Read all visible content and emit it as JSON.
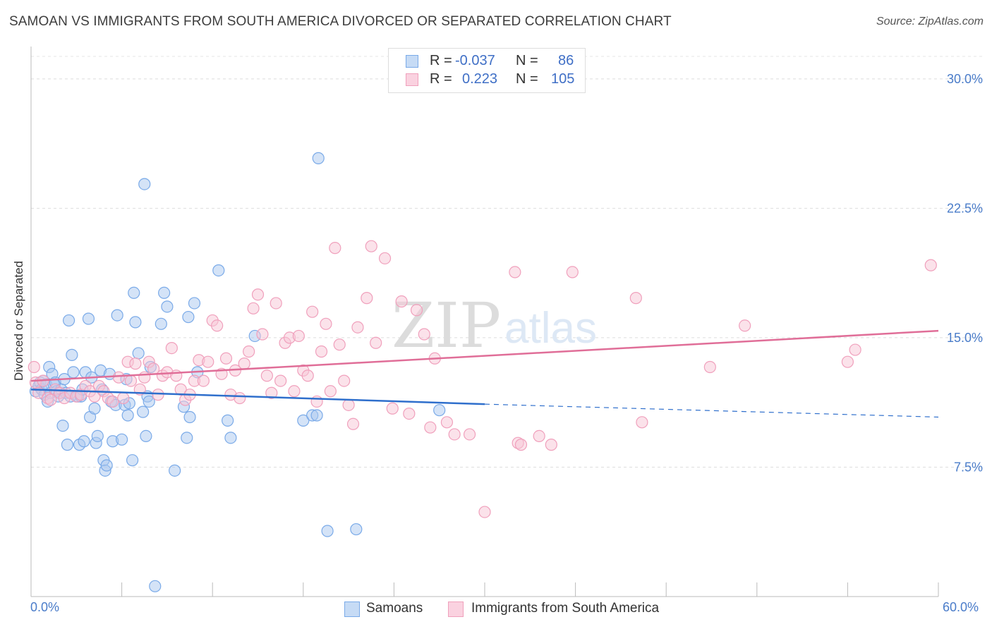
{
  "title": "SAMOAN VS IMMIGRANTS FROM SOUTH AMERICA DIVORCED OR SEPARATED CORRELATION CHART",
  "source": "Source: ZipAtlas.com",
  "watermark": {
    "zip": "ZIP",
    "atlas": "atlas"
  },
  "legend": {
    "r_label": "R =",
    "n_label": "N =",
    "rows": [
      {
        "r": "-0.037",
        "n": "86",
        "color": "#7aaae8"
      },
      {
        "r": "0.223",
        "n": "105",
        "color": "#f0a0bc"
      }
    ]
  },
  "chart_data": {
    "type": "scatter",
    "title": "SAMOAN VS IMMIGRANTS FROM SOUTH AMERICA DIVORCED OR SEPARATED CORRELATION CHART",
    "xlabel": "",
    "ylabel": "Divorced or Separated",
    "xlim": [
      0,
      60
    ],
    "ylim": [
      0,
      31.3
    ],
    "x_tick_labels": {
      "left": "0.0%",
      "right": "60.0%"
    },
    "y_ticks": [
      7.5,
      15.0,
      22.5,
      30.0
    ],
    "y_tick_labels": [
      "7.5%",
      "15.0%",
      "22.5%",
      "30.0%"
    ],
    "grid": true,
    "series": [
      {
        "name": "Samoans",
        "color": "#7aaae8",
        "fill": "#aac8f0",
        "line_color": "#2f6fcc",
        "trend": {
          "x0": 0,
          "y0": 12.0,
          "x1": 30,
          "y1": 11.15,
          "x_dash_end": 60,
          "y_dash_end": 10.4
        },
        "points": [
          [
            0.3,
            11.9
          ],
          [
            0.5,
            12.2
          ],
          [
            0.6,
            12.4
          ],
          [
            0.7,
            12.0
          ],
          [
            0.8,
            12.5
          ],
          [
            0.9,
            11.7
          ],
          [
            1.0,
            12.3
          ],
          [
            1.1,
            11.3
          ],
          [
            1.2,
            13.3
          ],
          [
            1.3,
            11.8
          ],
          [
            1.4,
            12.9
          ],
          [
            1.5,
            12.3
          ],
          [
            1.6,
            12.4
          ],
          [
            1.7,
            11.9
          ],
          [
            1.8,
            11.6
          ],
          [
            1.9,
            11.8
          ],
          [
            2.0,
            12.0
          ],
          [
            2.1,
            9.9
          ],
          [
            2.2,
            12.6
          ],
          [
            2.3,
            11.8
          ],
          [
            2.4,
            8.8
          ],
          [
            2.5,
            16.0
          ],
          [
            2.6,
            11.6
          ],
          [
            2.7,
            14.0
          ],
          [
            2.8,
            13.0
          ],
          [
            3.1,
            11.6
          ],
          [
            3.2,
            8.8
          ],
          [
            3.3,
            11.6
          ],
          [
            3.4,
            12.0
          ],
          [
            3.5,
            9.0
          ],
          [
            3.6,
            13.0
          ],
          [
            3.8,
            16.1
          ],
          [
            3.9,
            10.4
          ],
          [
            4.0,
            12.7
          ],
          [
            4.2,
            10.9
          ],
          [
            4.3,
            8.9
          ],
          [
            4.4,
            9.3
          ],
          [
            4.6,
            13.1
          ],
          [
            4.7,
            12.0
          ],
          [
            4.8,
            7.9
          ],
          [
            4.9,
            7.3
          ],
          [
            5.0,
            7.6
          ],
          [
            5.2,
            12.9
          ],
          [
            5.3,
            11.3
          ],
          [
            5.4,
            9.0
          ],
          [
            5.6,
            11.1
          ],
          [
            5.7,
            16.3
          ],
          [
            6.0,
            9.1
          ],
          [
            6.2,
            11.1
          ],
          [
            6.3,
            12.6
          ],
          [
            6.4,
            10.5
          ],
          [
            6.5,
            11.2
          ],
          [
            6.7,
            7.9
          ],
          [
            6.8,
            17.6
          ],
          [
            6.9,
            15.9
          ],
          [
            7.1,
            14.1
          ],
          [
            7.4,
            10.7
          ],
          [
            7.5,
            23.9
          ],
          [
            7.6,
            9.3
          ],
          [
            7.7,
            11.6
          ],
          [
            7.8,
            11.3
          ],
          [
            7.9,
            13.3
          ],
          [
            8.2,
            0.6
          ],
          [
            8.6,
            15.8
          ],
          [
            8.8,
            17.6
          ],
          [
            9.0,
            16.8
          ],
          [
            9.5,
            7.3
          ],
          [
            10.1,
            11.0
          ],
          [
            10.3,
            9.2
          ],
          [
            10.4,
            16.2
          ],
          [
            10.5,
            10.4
          ],
          [
            10.8,
            17.0
          ],
          [
            11.0,
            13.0
          ],
          [
            12.4,
            18.9
          ],
          [
            13.0,
            10.2
          ],
          [
            13.2,
            9.2
          ],
          [
            14.8,
            15.1
          ],
          [
            18.0,
            10.2
          ],
          [
            18.6,
            10.5
          ],
          [
            18.9,
            10.5
          ],
          [
            19.0,
            25.4
          ],
          [
            19.6,
            3.8
          ],
          [
            21.5,
            3.9
          ],
          [
            27.0,
            10.8
          ]
        ]
      },
      {
        "name": "Immigrants from South America",
        "color": "#f0a0bc",
        "fill": "#f8c6d6",
        "line_color": "#e06e98",
        "trend": {
          "x0": 0,
          "y0": 12.5,
          "x1": 60,
          "y1": 15.4
        },
        "points": [
          [
            0.2,
            13.3
          ],
          [
            0.3,
            12.4
          ],
          [
            0.5,
            11.8
          ],
          [
            0.8,
            12.5
          ],
          [
            1.1,
            11.5
          ],
          [
            1.3,
            11.4
          ],
          [
            1.6,
            12.0
          ],
          [
            1.9,
            11.8
          ],
          [
            2.2,
            11.5
          ],
          [
            2.6,
            11.8
          ],
          [
            3.0,
            11.6
          ],
          [
            3.3,
            11.7
          ],
          [
            3.6,
            12.2
          ],
          [
            3.9,
            11.9
          ],
          [
            4.2,
            11.6
          ],
          [
            4.5,
            12.2
          ],
          [
            4.8,
            11.9
          ],
          [
            5.1,
            11.5
          ],
          [
            5.4,
            11.3
          ],
          [
            5.8,
            12.7
          ],
          [
            6.1,
            11.5
          ],
          [
            6.4,
            13.6
          ],
          [
            6.6,
            12.5
          ],
          [
            6.9,
            13.5
          ],
          [
            7.2,
            12.0
          ],
          [
            7.5,
            12.7
          ],
          [
            7.8,
            13.6
          ],
          [
            8.1,
            13.2
          ],
          [
            8.4,
            11.7
          ],
          [
            8.7,
            12.8
          ],
          [
            9.0,
            13.0
          ],
          [
            9.3,
            14.4
          ],
          [
            9.6,
            12.8
          ],
          [
            9.9,
            12.0
          ],
          [
            10.2,
            11.4
          ],
          [
            10.5,
            11.7
          ],
          [
            10.8,
            12.5
          ],
          [
            11.1,
            13.7
          ],
          [
            11.4,
            12.5
          ],
          [
            11.7,
            13.6
          ],
          [
            12.0,
            16.0
          ],
          [
            12.3,
            15.7
          ],
          [
            12.6,
            12.9
          ],
          [
            12.9,
            13.8
          ],
          [
            13.2,
            11.7
          ],
          [
            13.5,
            13.1
          ],
          [
            13.8,
            11.5
          ],
          [
            14.1,
            13.5
          ],
          [
            14.4,
            14.2
          ],
          [
            14.7,
            16.7
          ],
          [
            15.0,
            17.5
          ],
          [
            15.3,
            15.2
          ],
          [
            15.6,
            12.8
          ],
          [
            15.9,
            11.8
          ],
          [
            16.2,
            17.0
          ],
          [
            16.5,
            12.5
          ],
          [
            16.8,
            14.7
          ],
          [
            17.1,
            15.0
          ],
          [
            17.4,
            11.9
          ],
          [
            17.7,
            15.1
          ],
          [
            18.0,
            13.1
          ],
          [
            18.3,
            12.8
          ],
          [
            18.6,
            16.5
          ],
          [
            18.9,
            11.3
          ],
          [
            19.2,
            14.2
          ],
          [
            19.5,
            15.8
          ],
          [
            19.8,
            11.9
          ],
          [
            20.1,
            20.2
          ],
          [
            20.4,
            14.6
          ],
          [
            20.7,
            12.5
          ],
          [
            21.0,
            11.1
          ],
          [
            21.3,
            10.0
          ],
          [
            21.6,
            15.6
          ],
          [
            22.2,
            17.3
          ],
          [
            22.5,
            20.3
          ],
          [
            22.8,
            14.7
          ],
          [
            23.4,
            19.6
          ],
          [
            23.9,
            10.9
          ],
          [
            24.5,
            17.1
          ],
          [
            25.0,
            10.6
          ],
          [
            25.5,
            16.6
          ],
          [
            26.0,
            15.2
          ],
          [
            26.4,
            9.8
          ],
          [
            26.7,
            13.8
          ],
          [
            27.5,
            10.1
          ],
          [
            28.0,
            9.4
          ],
          [
            29.0,
            9.4
          ],
          [
            30.0,
            4.9
          ],
          [
            32.0,
            18.8
          ],
          [
            32.2,
            8.9
          ],
          [
            32.4,
            8.8
          ],
          [
            33.6,
            9.3
          ],
          [
            34.4,
            8.8
          ],
          [
            35.8,
            18.8
          ],
          [
            40.0,
            17.3
          ],
          [
            40.4,
            10.1
          ],
          [
            44.9,
            13.3
          ],
          [
            47.2,
            15.7
          ],
          [
            54.0,
            13.6
          ],
          [
            54.5,
            14.3
          ],
          [
            59.5,
            19.2
          ]
        ]
      }
    ]
  }
}
